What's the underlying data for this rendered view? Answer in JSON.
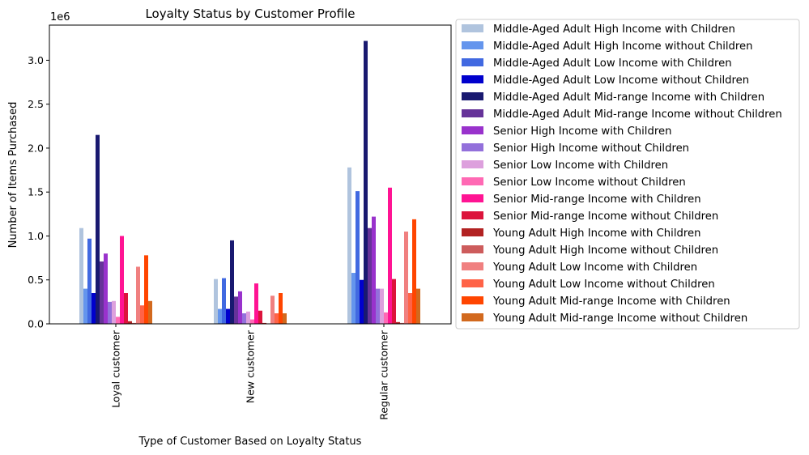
{
  "chart_data": {
    "type": "bar",
    "title": "Loyalty Status by Customer Profile",
    "xlabel": "Type of Customer Based on Loyalty Status",
    "ylabel": "Number of Items Purchased",
    "y_multiplier_label": "1e6",
    "ylim": [
      0,
      3.4
    ],
    "y_ticks": [
      0.0,
      0.5,
      1.0,
      1.5,
      2.0,
      2.5,
      3.0
    ],
    "y_tick_labels": [
      "0.0",
      "0.5",
      "1.0",
      "1.5",
      "2.0",
      "2.5",
      "3.0"
    ],
    "categories": [
      "Loyal customer",
      "New customer",
      "Regular customer"
    ],
    "legend_position": "outside right",
    "grid": false,
    "series": [
      {
        "name": "Middle-Aged Adult High Income with Children",
        "color": "#B0C4DE",
        "values": [
          1.09,
          0.51,
          1.78
        ]
      },
      {
        "name": "Middle-Aged Adult High Income without Children",
        "color": "#6495ED",
        "values": [
          0.4,
          0.17,
          0.58
        ]
      },
      {
        "name": "Middle-Aged Adult Low Income with Children",
        "color": "#4169E1",
        "values": [
          0.97,
          0.52,
          1.51
        ]
      },
      {
        "name": "Middle-Aged Adult Low Income without Children",
        "color": "#0000CD",
        "values": [
          0.35,
          0.17,
          0.5
        ]
      },
      {
        "name": "Middle-Aged Adult Mid-range Income with Children",
        "color": "#191970",
        "values": [
          2.15,
          0.95,
          3.22
        ]
      },
      {
        "name": "Middle-Aged Adult Mid-range Income without Children",
        "color": "#663399",
        "values": [
          0.71,
          0.31,
          1.09
        ]
      },
      {
        "name": "Senior High Income with Children",
        "color": "#9932CC",
        "values": [
          0.8,
          0.37,
          1.22
        ]
      },
      {
        "name": "Senior High Income without Children",
        "color": "#9370DB",
        "values": [
          0.25,
          0.12,
          0.4
        ]
      },
      {
        "name": "Senior Low Income with Children",
        "color": "#DDA0DD",
        "values": [
          0.26,
          0.14,
          0.4
        ]
      },
      {
        "name": "Senior Low Income without Children",
        "color": "#FF69B4",
        "values": [
          0.08,
          0.05,
          0.13
        ]
      },
      {
        "name": "Senior Mid-range Income with Children",
        "color": "#FF1493",
        "values": [
          1.0,
          0.46,
          1.55
        ]
      },
      {
        "name": "Senior Mid-range Income without Children",
        "color": "#DC143C",
        "values": [
          0.35,
          0.15,
          0.51
        ]
      },
      {
        "name": "Young Adult High Income with Children",
        "color": "#B22222",
        "values": [
          0.03,
          0.01,
          0.02
        ]
      },
      {
        "name": "Young Adult High Income without Children",
        "color": "#CD5C5C",
        "values": [
          0.01,
          0.005,
          0.01
        ]
      },
      {
        "name": "Young Adult Low Income with Children",
        "color": "#F08080",
        "values": [
          0.65,
          0.32,
          1.05
        ]
      },
      {
        "name": "Young Adult Low Income without Children",
        "color": "#FF6347",
        "values": [
          0.21,
          0.12,
          0.35
        ]
      },
      {
        "name": "Young Adult Mid-range Income with Children",
        "color": "#FF4500",
        "values": [
          0.78,
          0.35,
          1.19
        ]
      },
      {
        "name": "Young Adult Mid-range Income without Children",
        "color": "#D2691E",
        "values": [
          0.26,
          0.12,
          0.4
        ]
      }
    ]
  }
}
